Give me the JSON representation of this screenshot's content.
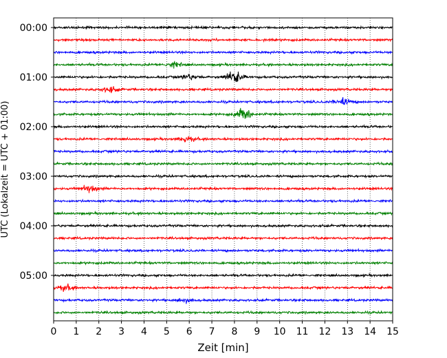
{
  "chart_data": {
    "type": "line",
    "title": "",
    "xlabel": "Zeit  [min]",
    "ylabel": "UTC (Lokalzeit = UTC + 01:00)",
    "xlim": [
      0,
      15
    ],
    "x_ticks": [
      "0",
      "1",
      "2",
      "3",
      "4",
      "5",
      "6",
      "7",
      "8",
      "9",
      "10",
      "11",
      "12",
      "13",
      "14",
      "15"
    ],
    "y_ticks": [
      "00:00",
      "01:00",
      "02:00",
      "03:00",
      "04:00",
      "05:00"
    ],
    "grid": "vertical dotted lines at each minute",
    "trace_colors": [
      "#000000",
      "#ff0000",
      "#0000ff",
      "#008000"
    ],
    "series": [
      {
        "start": "00:00",
        "color": "#000000",
        "events": []
      },
      {
        "start": "00:15",
        "color": "#ff0000",
        "events": []
      },
      {
        "start": "00:30",
        "color": "#0000ff",
        "events": []
      },
      {
        "start": "00:45",
        "color": "#008000",
        "events": [
          {
            "minute": 5.3,
            "amplitude": 0.4
          }
        ]
      },
      {
        "start": "01:00",
        "color": "#000000",
        "events": [
          {
            "minute": 8.0,
            "amplitude": 1.0
          },
          {
            "minute": 6.0,
            "amplitude": 0.4
          }
        ]
      },
      {
        "start": "01:15",
        "color": "#ff0000",
        "events": [
          {
            "minute": 2.5,
            "amplitude": 0.4
          }
        ]
      },
      {
        "start": "01:30",
        "color": "#0000ff",
        "events": [
          {
            "minute": 12.8,
            "amplitude": 0.55
          }
        ]
      },
      {
        "start": "01:45",
        "color": "#008000",
        "events": [
          {
            "minute": 8.4,
            "amplitude": 1.1
          }
        ]
      },
      {
        "start": "02:00",
        "color": "#000000",
        "events": []
      },
      {
        "start": "02:15",
        "color": "#ff0000",
        "events": [
          {
            "minute": 5.9,
            "amplitude": 0.45
          }
        ]
      },
      {
        "start": "02:30",
        "color": "#0000ff",
        "events": []
      },
      {
        "start": "02:45",
        "color": "#008000",
        "events": []
      },
      {
        "start": "03:00",
        "color": "#000000",
        "events": []
      },
      {
        "start": "03:15",
        "color": "#ff0000",
        "events": [
          {
            "minute": 1.6,
            "amplitude": 0.55
          }
        ]
      },
      {
        "start": "03:30",
        "color": "#0000ff",
        "events": []
      },
      {
        "start": "03:45",
        "color": "#008000",
        "events": []
      },
      {
        "start": "04:00",
        "color": "#000000",
        "events": []
      },
      {
        "start": "04:15",
        "color": "#ff0000",
        "events": []
      },
      {
        "start": "04:30",
        "color": "#0000ff",
        "events": []
      },
      {
        "start": "04:45",
        "color": "#008000",
        "events": []
      },
      {
        "start": "05:00",
        "color": "#000000",
        "events": []
      },
      {
        "start": "05:15",
        "color": "#ff0000",
        "events": [
          {
            "minute": 0.5,
            "amplitude": 0.45
          }
        ]
      },
      {
        "start": "05:30",
        "color": "#0000ff",
        "events": [
          {
            "minute": 5.8,
            "amplitude": 0.35
          }
        ]
      },
      {
        "start": "05:45",
        "color": "#008000",
        "events": []
      }
    ]
  }
}
